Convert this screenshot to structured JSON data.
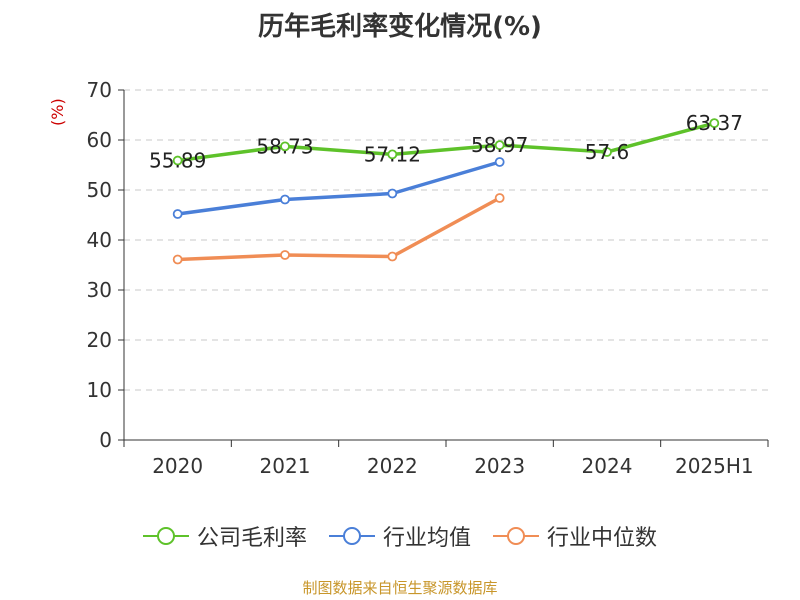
{
  "chart_data": {
    "type": "line",
    "title": "历年毛利率变化情况(%)",
    "ylabel": "(%)",
    "xlabel": "",
    "categories": [
      "2020",
      "2021",
      "2022",
      "2023",
      "2024",
      "2025H1"
    ],
    "yticks": [
      "0",
      "10",
      "20",
      "30",
      "40",
      "50",
      "60",
      "70"
    ],
    "ylim": [
      0,
      70
    ],
    "grid": true,
    "legend_position": "bottom",
    "series": [
      {
        "name": "公司毛利率",
        "color": "#5ec22a",
        "values": [
          55.89,
          58.73,
          57.12,
          58.97,
          57.6,
          63.37
        ],
        "labels": [
          "55.89",
          "58.73",
          "57.12",
          "58.97",
          "57.6",
          "63.37"
        ]
      },
      {
        "name": "行业均值",
        "color": "#4a7fd8",
        "values": [
          45.2,
          48.1,
          49.3,
          55.6,
          null,
          null
        ]
      },
      {
        "name": "行业中位数",
        "color": "#f08d55",
        "values": [
          36.1,
          37.0,
          36.7,
          48.4,
          null,
          null
        ]
      }
    ],
    "source": "制图数据来自恒生聚源数据库"
  }
}
